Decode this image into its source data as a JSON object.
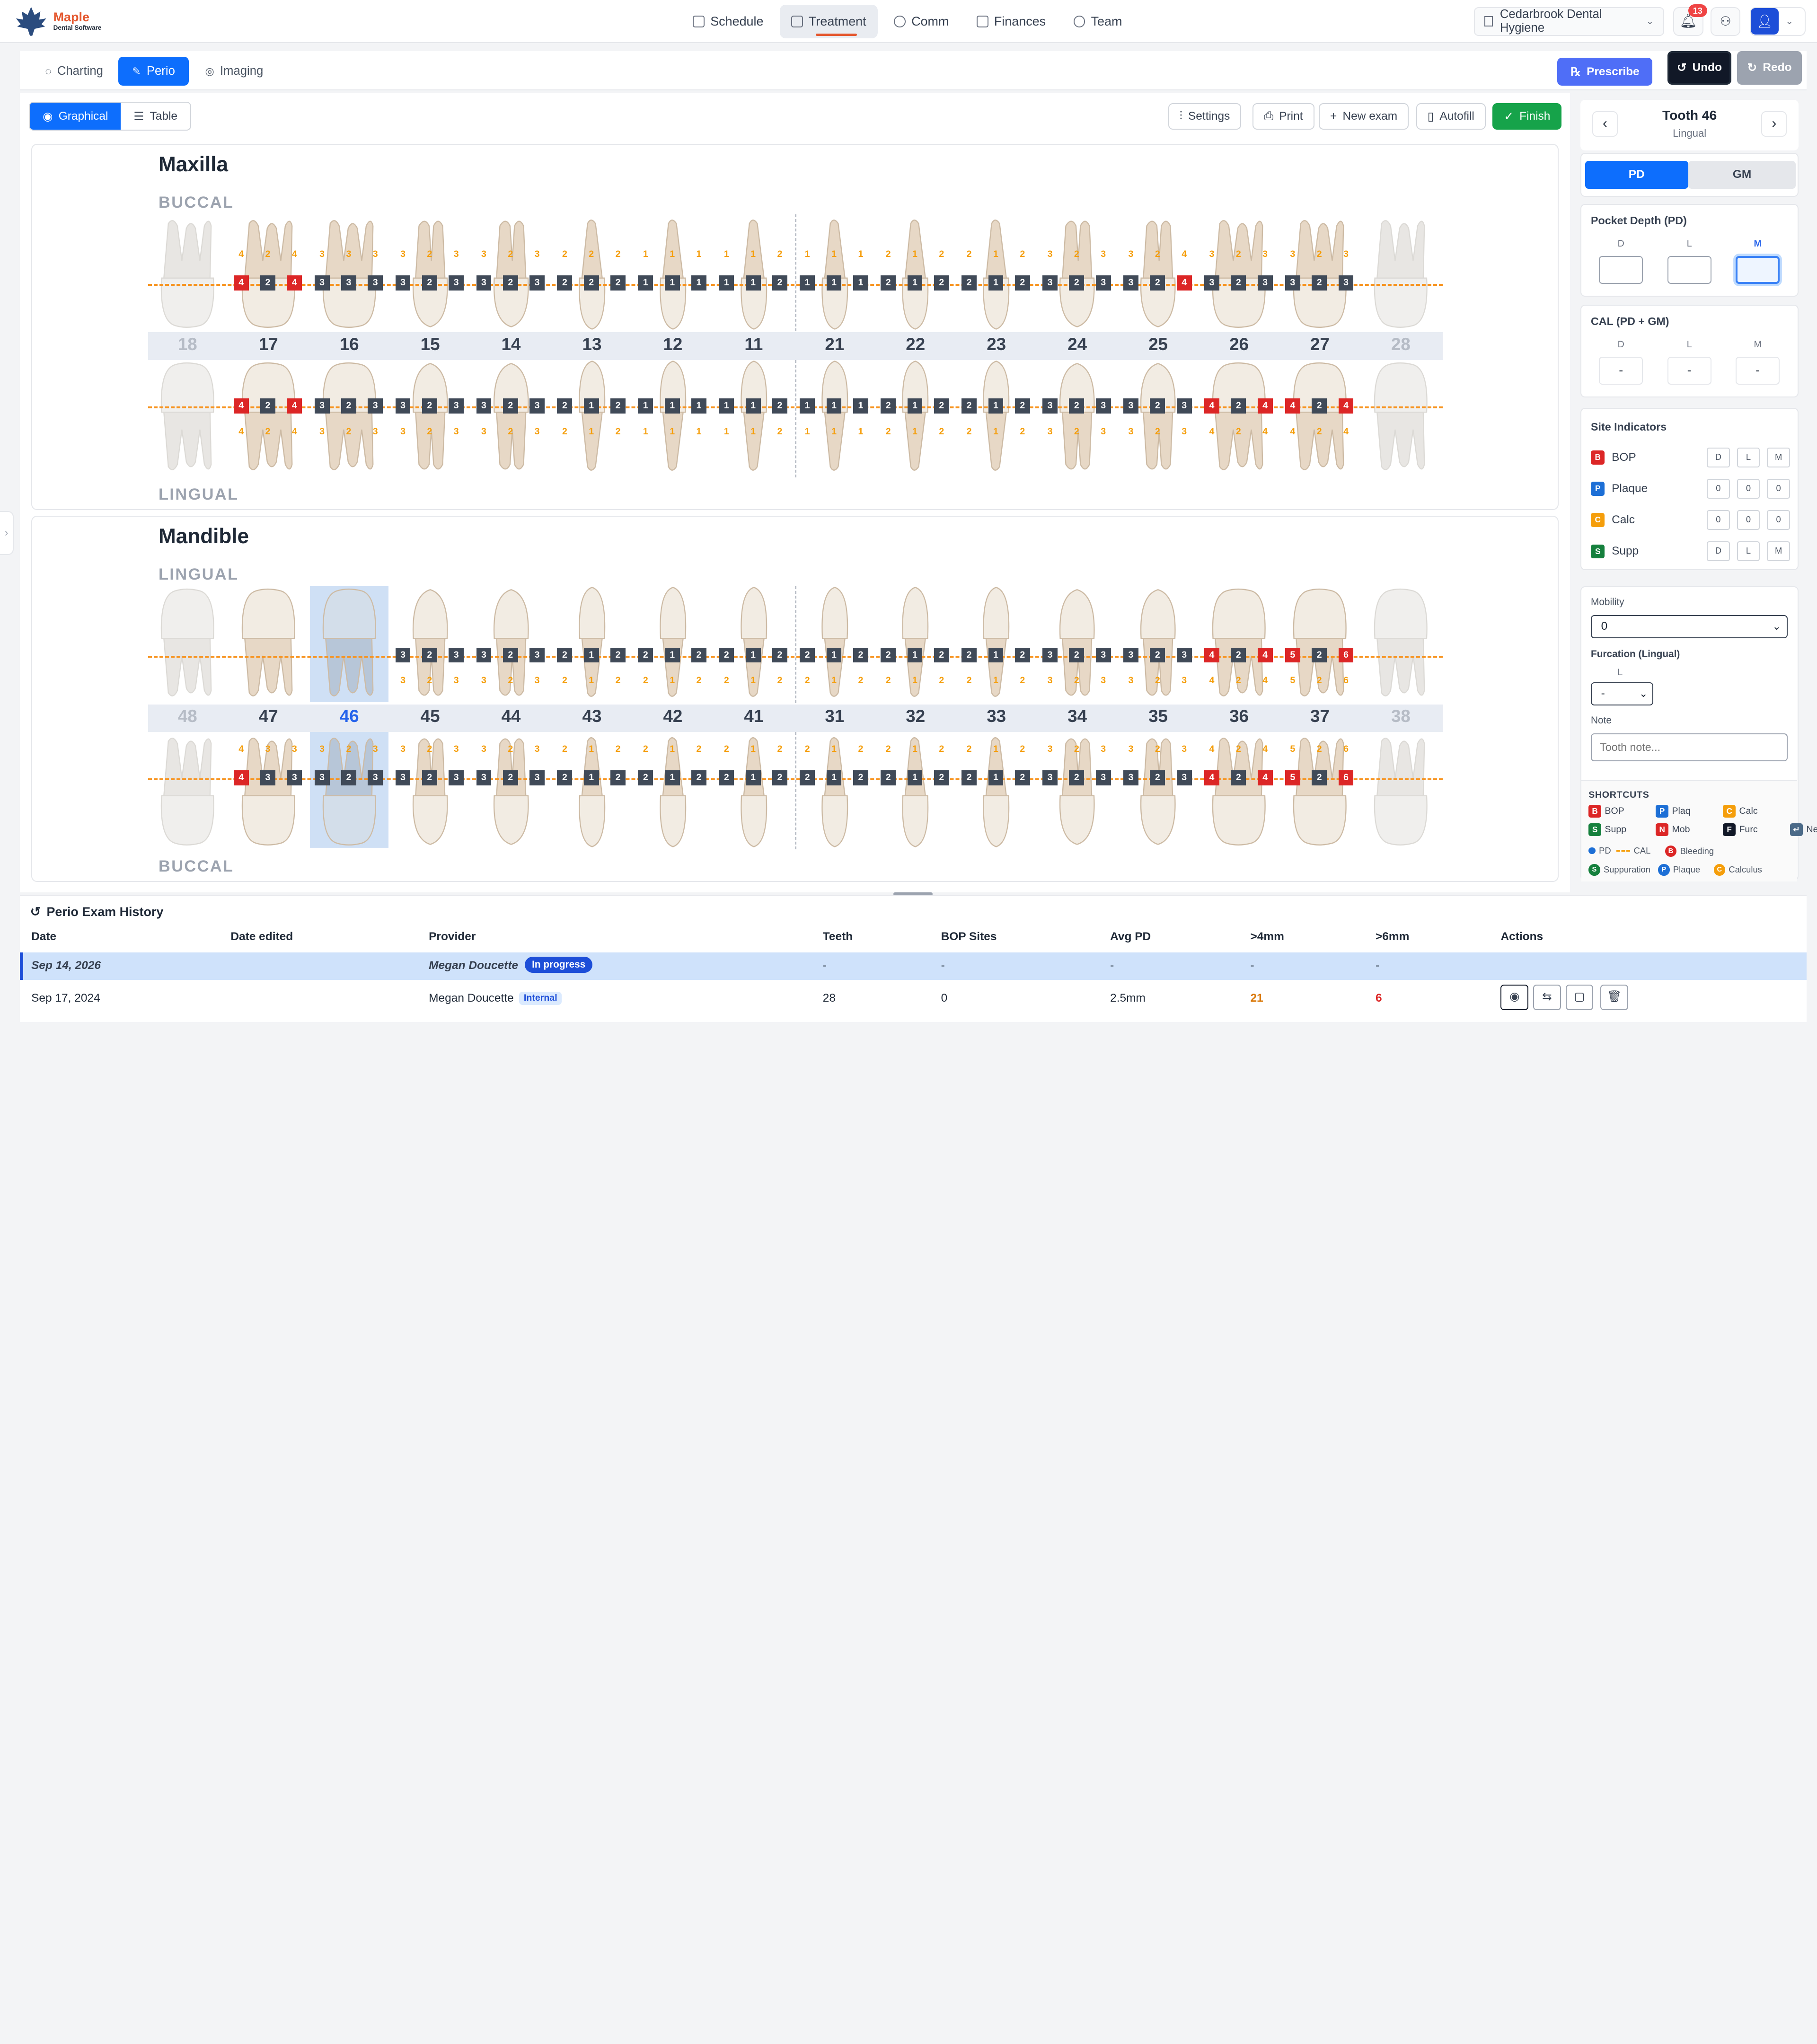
{
  "brand": {
    "name": "Maple",
    "tagline": "Dental Software"
  },
  "nav": {
    "items": [
      {
        "label": "Schedule"
      },
      {
        "label": "Treatment"
      },
      {
        "label": "Comm"
      },
      {
        "label": "Finances"
      },
      {
        "label": "Team"
      }
    ]
  },
  "clinic": {
    "name": "Cedarbrook Dental Hygiene"
  },
  "notifications": {
    "count": "13"
  },
  "tabs": {
    "charting": "Charting",
    "perio": "Perio",
    "imaging": "Imaging"
  },
  "actions": {
    "prescribe": "Prescribe",
    "undo": "Undo",
    "redo": "Redo"
  },
  "view": {
    "graphical": "Graphical",
    "table": "Table"
  },
  "toolbar": {
    "settings": "Settings",
    "print": "Print",
    "new_exam": "New exam",
    "autofill": "Autofill",
    "finish": "Finish"
  },
  "maxilla": {
    "title": "Maxilla",
    "upper_label": "BUCCAL",
    "lower_label": "LINGUAL",
    "teeth": [
      "18",
      "17",
      "16",
      "15",
      "14",
      "13",
      "12",
      "11",
      "21",
      "22",
      "23",
      "24",
      "25",
      "26",
      "27",
      "28"
    ]
  },
  "mandible": {
    "title": "Mandible",
    "upper_label": "LINGUAL",
    "lower_label": "BUCCAL",
    "teeth": [
      "48",
      "47",
      "46",
      "45",
      "44",
      "43",
      "42",
      "41",
      "31",
      "32",
      "33",
      "34",
      "35",
      "36",
      "37",
      "38"
    ]
  },
  "tooth_panel": {
    "title": "Tooth 46",
    "surface": "Lingual",
    "tab_pd": "PD",
    "tab_gm": "GM",
    "pd_title": "Pocket Depth (PD)",
    "cal_title": "CAL (PD + GM)",
    "d": "D",
    "l": "L",
    "m": "M",
    "cal_d": "-",
    "cal_l": "-",
    "cal_m": "-",
    "indicators_title": "Site Indicators",
    "indicators": [
      {
        "tag": "B",
        "label": "BOP",
        "color": "#dc2626",
        "v": [
          "D",
          "L",
          "M"
        ]
      },
      {
        "tag": "P",
        "label": "Plaque",
        "color": "#1d6fd6",
        "v": [
          "0",
          "0",
          "0"
        ]
      },
      {
        "tag": "C",
        "label": "Calc",
        "color": "#f59e0b",
        "v": [
          "0",
          "0",
          "0"
        ]
      },
      {
        "tag": "S",
        "label": "Supp",
        "color": "#15803d",
        "v": [
          "D",
          "L",
          "M"
        ]
      }
    ],
    "mobility_label": "Mobility",
    "mobility_value": "0",
    "furcation_label": "Furcation (Lingual)",
    "furcation_sub": "L",
    "furcation_value": "-",
    "note_label": "Note",
    "note_placeholder": "Tooth note...",
    "shortcuts_title": "SHORTCUTS",
    "shortcuts": [
      {
        "k": "B",
        "t": "BOP",
        "c": "#dc2626"
      },
      {
        "k": "P",
        "t": "Plaq",
        "c": "#1d6fd6"
      },
      {
        "k": "C",
        "t": "Calc",
        "c": "#f59e0b"
      },
      {
        "k": "S",
        "t": "Supp",
        "c": "#15803d"
      },
      {
        "k": "N",
        "t": "Mob",
        "c": "#dc2626"
      },
      {
        "k": "F",
        "t": "Furc",
        "c": "#111827"
      },
      {
        "k": "↵",
        "t": "Next",
        "c": "#4b6a88"
      }
    ],
    "legend": [
      {
        "t": "PD"
      },
      {
        "t": "CAL"
      },
      {
        "t": "Bleeding",
        "k": "B"
      },
      {
        "t": "Suppuration",
        "k": "S"
      },
      {
        "t": "Plaque",
        "k": "P"
      },
      {
        "t": "Calculus",
        "k": "C"
      }
    ]
  },
  "history": {
    "title": "Perio Exam History",
    "columns": [
      "Date",
      "Date edited",
      "Provider",
      "Teeth",
      "BOP Sites",
      "Avg PD",
      ">4mm",
      ">6mm",
      "Actions"
    ],
    "rows": [
      {
        "date": "Sep 14, 2026",
        "edited": "",
        "provider": "Megan Doucette",
        "status": "In progress",
        "teeth": "-",
        "bop": "-",
        "avg": "-",
        "gt4": "-",
        "gt6": "-"
      },
      {
        "date": "Sep 17, 2024",
        "edited": "",
        "provider": "Megan Doucette",
        "status": "Internal",
        "teeth": "28",
        "bop": "0",
        "avg": "2.5mm",
        "gt4": "21",
        "gt6": "6"
      }
    ]
  }
}
